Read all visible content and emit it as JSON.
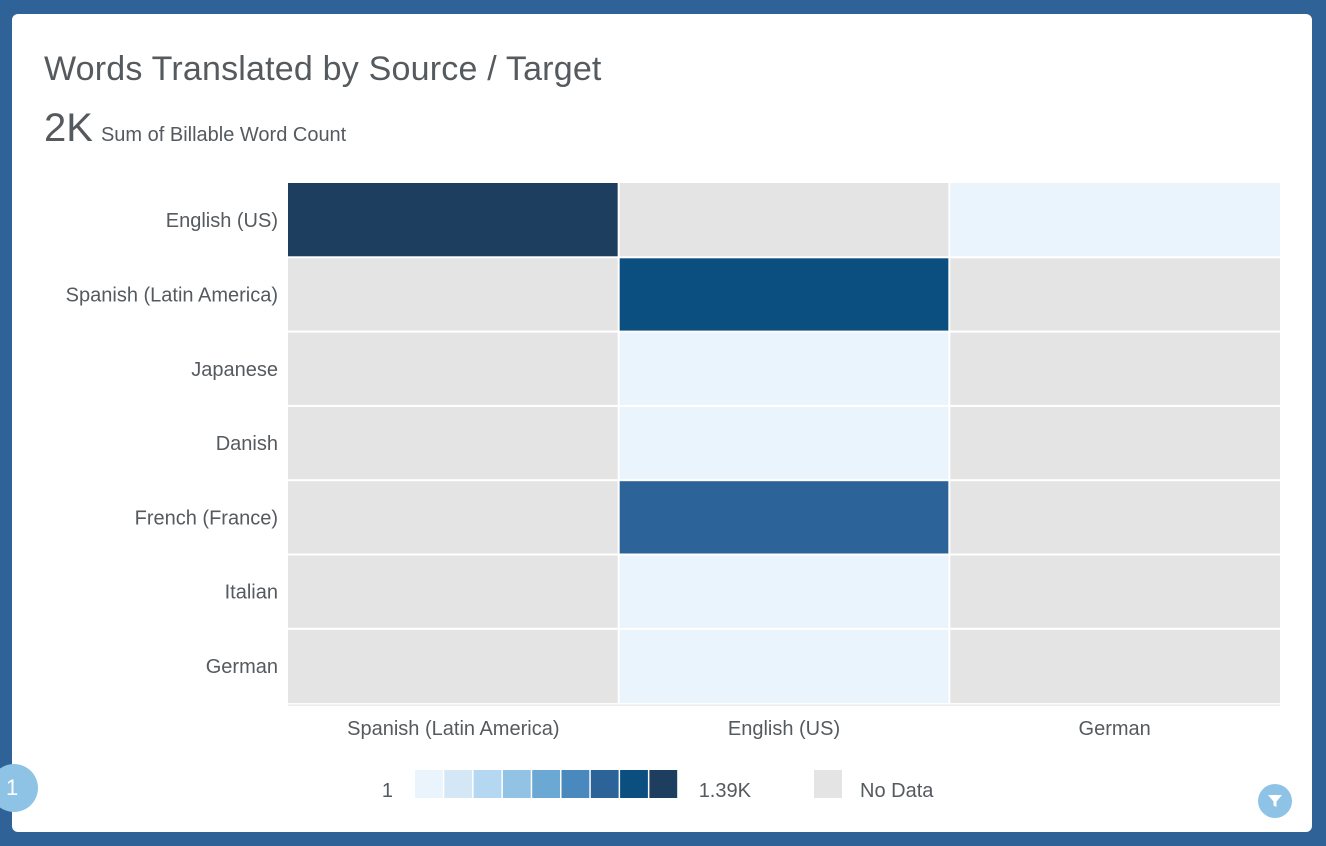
{
  "card": {
    "title": "Words Translated by Source / Target",
    "metric_value": "2K",
    "metric_label": "Sum of Billable Word Count",
    "badge": "1"
  },
  "icons": {
    "filter": "filter-icon"
  },
  "chart_data": {
    "type": "heatmap",
    "rows": [
      "English (US)",
      "Spanish (Latin America)",
      "Japanese",
      "Danish",
      "French (France)",
      "Italian",
      "German"
    ],
    "columns": [
      "Spanish (Latin America)",
      "English (US)",
      "German"
    ],
    "values": [
      [
        1390,
        null,
        1
      ],
      [
        null,
        500,
        null
      ],
      [
        null,
        1,
        null
      ],
      [
        null,
        1,
        null
      ],
      [
        null,
        300,
        null
      ],
      [
        null,
        1,
        null
      ],
      [
        null,
        1,
        null
      ]
    ],
    "legend": {
      "min_label": "1",
      "max_label": "1.39K",
      "no_data_label": "No Data",
      "min": 1,
      "max": 1390,
      "colors": [
        "#eaf4fc",
        "#d3e7f7",
        "#b5d8f2",
        "#92c3e4",
        "#6ba9d4",
        "#4a89be",
        "#2c6399",
        "#0a4f80",
        "#1e3e60"
      ],
      "no_data_color": "#e4e4e4"
    }
  }
}
